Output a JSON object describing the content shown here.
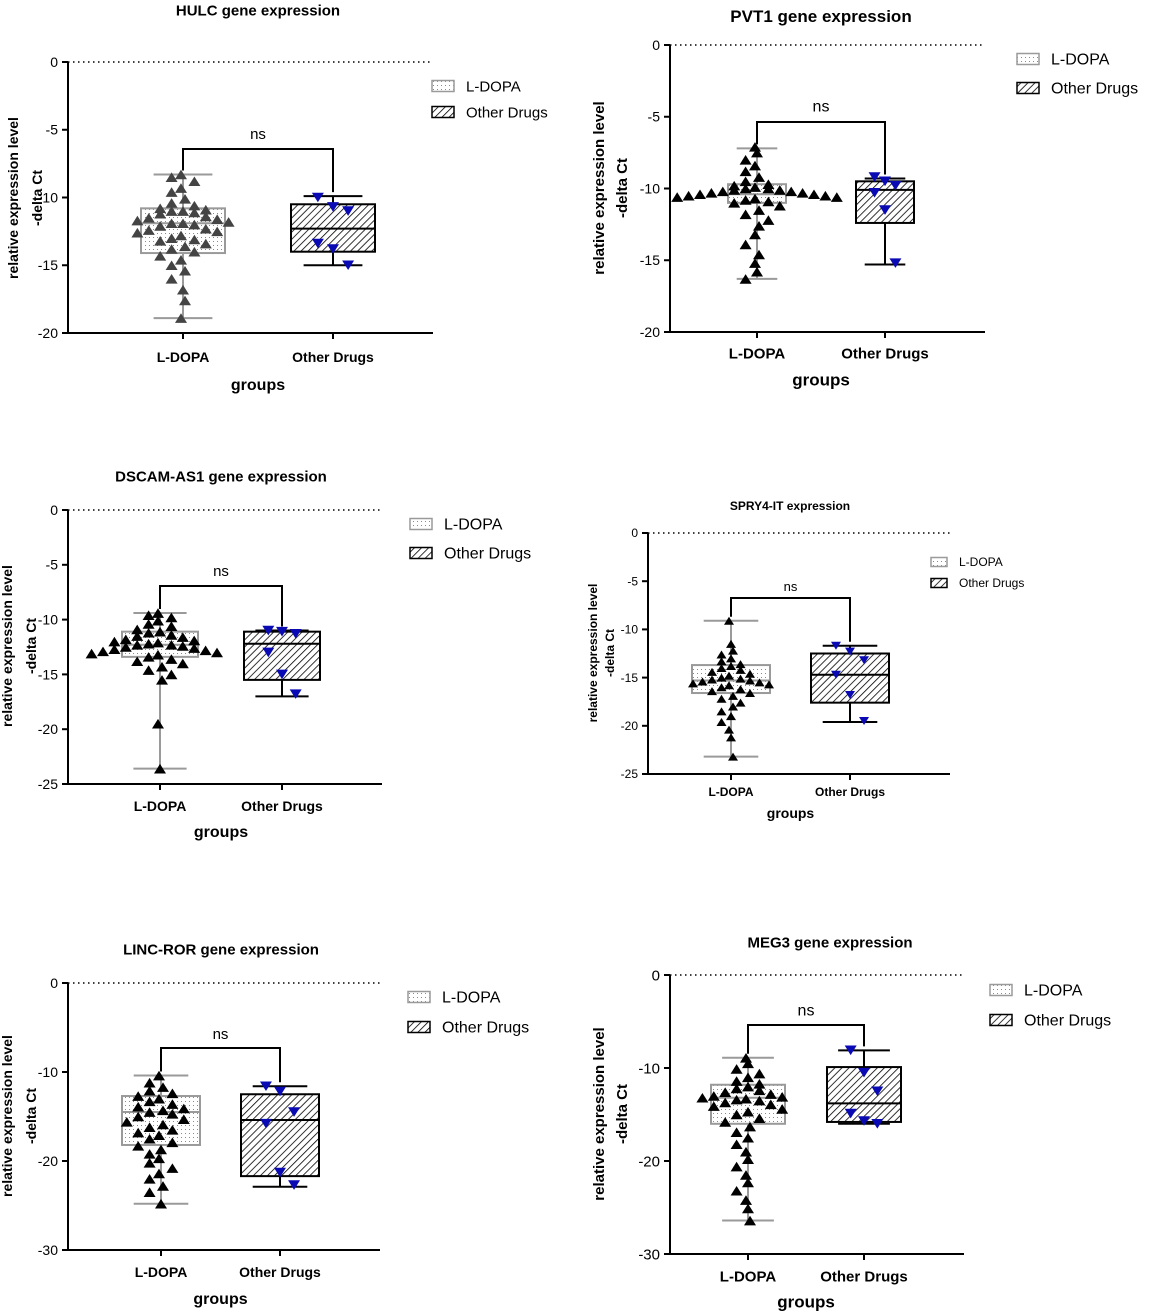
{
  "figure": {
    "description": "Box-and-scatter plots of lncRNA expression, L-DOPA vs Other Drugs"
  },
  "colors": {
    "axis": "#000000",
    "ldopa_box": "#9a9a9a",
    "ldopa_points": "#000000",
    "hulc_points": "#444444",
    "other_points": "#0a0ab4",
    "other_box": "#000000"
  },
  "chart_data": [
    {
      "type": "box",
      "title": "HULC gene expression",
      "xlabel": "groups",
      "ylabel": [
        "relative expression level",
        "-delta Ct"
      ],
      "ylim": [
        -20,
        0
      ],
      "yticks": [
        0,
        -5,
        -10,
        -15,
        -20
      ],
      "ytick_labels": [
        "0",
        "-5",
        "-10",
        "-15",
        "-20"
      ],
      "categories": [
        "L-DOPA",
        "Other Drugs"
      ],
      "legend": [
        "L-DOPA",
        "Other Drugs"
      ],
      "annotation": "ns",
      "series": [
        {
          "name": "L-DOPA",
          "whisker": [
            -18.9,
            -8.3
          ],
          "q1": -14.1,
          "median": -11.9,
          "q3": -10.8,
          "points": [
            -8.3,
            -8.5,
            -8.8,
            -9.3,
            -9.6,
            -10.1,
            -10.4,
            -10.6,
            -10.8,
            -10.9,
            -11.0,
            -11.0,
            -11.1,
            -11.2,
            -11.4,
            -11.5,
            -11.6,
            -11.7,
            -11.8,
            -11.9,
            -11.9,
            -12.0,
            -12.1,
            -12.3,
            -12.4,
            -12.5,
            -12.6,
            -12.8,
            -13.0,
            -13.1,
            -13.2,
            -13.4,
            -13.6,
            -13.8,
            -14.0,
            -14.3,
            -14.6,
            -15.0,
            -15.4,
            -16.0,
            -16.8,
            -17.6,
            -18.9
          ]
        },
        {
          "name": "Other Drugs",
          "whisker": [
            -15.0,
            -9.9
          ],
          "q1": -14.0,
          "median": -12.3,
          "q3": -10.5,
          "points": [
            -10.0,
            -10.7,
            -11.0,
            -13.4,
            -13.8,
            -15.0
          ]
        }
      ]
    },
    {
      "type": "box",
      "title": "PVT1 gene expression",
      "xlabel": "groups",
      "ylabel": [
        "relative expression level",
        "-delta Ct"
      ],
      "ylim": [
        -20,
        0
      ],
      "yticks": [
        0,
        -5,
        -10,
        -15,
        -20
      ],
      "ytick_labels": [
        "0",
        "-5",
        "-10",
        "-15",
        "-20"
      ],
      "categories": [
        "L-DOPA",
        "Other Drugs"
      ],
      "legend": [
        "L-DOPA",
        "Other Drugs"
      ],
      "annotation": "ns",
      "series": [
        {
          "name": "L-DOPA",
          "whisker": [
            -16.3,
            -7.2
          ],
          "q1": -11.0,
          "median": -10.4,
          "q3": -9.7,
          "points": [
            -7.1,
            -7.5,
            -8.0,
            -8.4,
            -8.8,
            -9.2,
            -9.5,
            -9.7,
            -9.8,
            -9.9,
            -10.0,
            -10.0,
            -10.1,
            -10.1,
            -10.2,
            -10.2,
            -10.3,
            -10.3,
            -10.4,
            -10.4,
            -10.5,
            -10.5,
            -10.6,
            -10.6,
            -10.7,
            -10.8,
            -10.9,
            -11.0,
            -11.2,
            -11.5,
            -11.8,
            -12.2,
            -12.6,
            -13.2,
            -13.9,
            -14.6,
            -15.2,
            -15.8,
            -16.3
          ]
        },
        {
          "name": "Other Drugs",
          "whisker": [
            -15.3,
            -9.3
          ],
          "q1": -12.4,
          "median": -10.1,
          "q3": -9.5,
          "points": [
            -9.2,
            -9.5,
            -9.8,
            -10.3,
            -11.5,
            -15.2
          ]
        }
      ]
    },
    {
      "type": "box",
      "title": "DSCAM-AS1 gene expression",
      "xlabel": "groups",
      "ylabel": [
        "relative expression level",
        "-delta Ct"
      ],
      "ylim": [
        -25,
        0
      ],
      "yticks": [
        0,
        -5,
        -10,
        -15,
        -20,
        -25
      ],
      "ytick_labels": [
        "0",
        "-5",
        "-10",
        "-15",
        "-20",
        "-25"
      ],
      "categories": [
        "L-DOPA",
        "Other Drugs"
      ],
      "legend": [
        "L-DOPA",
        "Other Drugs"
      ],
      "annotation": "ns",
      "series": [
        {
          "name": "L-DOPA",
          "whisker": [
            -23.6,
            -9.4
          ],
          "q1": -13.4,
          "median": -12.3,
          "q3": -11.1,
          "points": [
            -9.4,
            -9.6,
            -9.8,
            -10.1,
            -10.4,
            -10.6,
            -10.9,
            -11.1,
            -11.2,
            -11.4,
            -11.5,
            -11.6,
            -11.8,
            -11.9,
            -12.0,
            -12.1,
            -12.2,
            -12.3,
            -12.3,
            -12.4,
            -12.5,
            -12.6,
            -12.7,
            -12.8,
            -12.9,
            -13.0,
            -13.1,
            -13.2,
            -13.4,
            -13.6,
            -13.8,
            -14.0,
            -14.3,
            -14.6,
            -15.0,
            -15.5,
            -19.5,
            -23.6
          ]
        },
        {
          "name": "Other Drugs",
          "whisker": [
            -17.0,
            -11.0
          ],
          "q1": -15.5,
          "median": -12.2,
          "q3": -11.1,
          "points": [
            -11.0,
            -11.1,
            -11.3,
            -13.0,
            -15.0,
            -16.8
          ]
        }
      ]
    },
    {
      "type": "box",
      "title": "SPRY4-IT expression",
      "xlabel": "groups",
      "ylabel": [
        "relative expression level",
        "-delta Ct"
      ],
      "ylim": [
        -25,
        0
      ],
      "yticks": [
        0,
        -5,
        -10,
        -15,
        -20,
        -25
      ],
      "ytick_labels": [
        "0",
        "-5",
        "-10",
        "-15",
        "-20",
        "-25"
      ],
      "categories": [
        "L-DOPA",
        "Other Drugs"
      ],
      "legend": [
        "L-DOPA",
        "Other Drugs"
      ],
      "annotation": "ns",
      "series": [
        {
          "name": "L-DOPA",
          "whisker": [
            -23.2,
            -9.1
          ],
          "q1": -16.6,
          "median": -15.3,
          "q3": -13.7,
          "points": [
            -9.1,
            -11.5,
            -12.2,
            -12.6,
            -13.0,
            -13.3,
            -13.6,
            -13.8,
            -14.0,
            -14.2,
            -14.4,
            -14.6,
            -14.8,
            -15.0,
            -15.1,
            -15.2,
            -15.3,
            -15.4,
            -15.5,
            -15.6,
            -15.7,
            -15.8,
            -16.0,
            -16.2,
            -16.4,
            -16.6,
            -16.9,
            -17.2,
            -17.6,
            -18.0,
            -18.5,
            -19.0,
            -19.6,
            -20.4,
            -21.2,
            -23.2
          ]
        },
        {
          "name": "Other Drugs",
          "whisker": [
            -19.6,
            -11.7
          ],
          "q1": -17.6,
          "median": -14.7,
          "q3": -12.5,
          "points": [
            -11.7,
            -12.3,
            -13.2,
            -14.7,
            -16.8,
            -19.5
          ]
        }
      ]
    },
    {
      "type": "box",
      "title": "LINC-ROR gene expression",
      "xlabel": "groups",
      "ylabel": [
        "relative expression level",
        "-delta Ct"
      ],
      "ylim": [
        -30,
        0
      ],
      "yticks": [
        0,
        -10,
        -20,
        -30
      ],
      "ytick_labels": [
        "0",
        "-10",
        "-20",
        "-30"
      ],
      "categories": [
        "L-DOPA",
        "Other Drugs"
      ],
      "legend": [
        "L-DOPA",
        "Other Drugs"
      ],
      "annotation": "ns",
      "series": [
        {
          "name": "L-DOPA",
          "whisker": [
            -24.8,
            -10.4
          ],
          "q1": -18.2,
          "median": -14.5,
          "q3": -12.7,
          "points": [
            -10.4,
            -11.2,
            -11.7,
            -12.1,
            -12.4,
            -12.7,
            -13.0,
            -13.3,
            -13.6,
            -13.9,
            -14.1,
            -14.3,
            -14.5,
            -14.7,
            -15.0,
            -15.3,
            -15.6,
            -15.9,
            -16.2,
            -16.5,
            -16.8,
            -17.1,
            -17.5,
            -17.9,
            -18.3,
            -18.7,
            -19.2,
            -19.7,
            -20.2,
            -20.8,
            -21.4,
            -22.0,
            -22.8,
            -23.5,
            -24.8
          ]
        },
        {
          "name": "Other Drugs",
          "whisker": [
            -22.9,
            -11.6
          ],
          "q1": -21.7,
          "median": -15.4,
          "q3": -12.5,
          "points": [
            -11.6,
            -12.2,
            -14.5,
            -15.8,
            -21.3,
            -22.7
          ]
        }
      ]
    },
    {
      "type": "box",
      "title": "MEG3 gene expression",
      "xlabel": "groups",
      "ylabel": [
        "relative expression level",
        "-delta Ct"
      ],
      "ylim": [
        -30,
        0
      ],
      "yticks": [
        0,
        -10,
        -20,
        -30
      ],
      "ytick_labels": [
        "0",
        "-10",
        "-20",
        "-30"
      ],
      "categories": [
        "L-DOPA",
        "Other Drugs"
      ],
      "legend": [
        "L-DOPA",
        "Other Drugs"
      ],
      "annotation": "ns",
      "series": [
        {
          "name": "L-DOPA",
          "whisker": [
            -26.4,
            -8.9
          ],
          "q1": -16.0,
          "median": -13.2,
          "q3": -11.8,
          "points": [
            -8.9,
            -9.5,
            -10.1,
            -10.6,
            -11.0,
            -11.4,
            -11.7,
            -12.0,
            -12.2,
            -12.4,
            -12.6,
            -12.8,
            -13.0,
            -13.1,
            -13.2,
            -13.3,
            -13.4,
            -13.5,
            -13.7,
            -13.9,
            -14.1,
            -14.4,
            -14.7,
            -15.0,
            -15.4,
            -15.8,
            -16.3,
            -16.9,
            -17.5,
            -18.2,
            -19.0,
            -19.8,
            -20.6,
            -21.5,
            -22.3,
            -23.2,
            -24.2,
            -25.1,
            -26.4
          ]
        },
        {
          "name": "Other Drugs",
          "whisker": [
            -16.0,
            -8.1
          ],
          "q1": -15.8,
          "median": -13.8,
          "q3": -9.9,
          "points": [
            -8.1,
            -10.5,
            -12.5,
            -14.9,
            -15.7,
            -16.0
          ]
        }
      ]
    }
  ]
}
